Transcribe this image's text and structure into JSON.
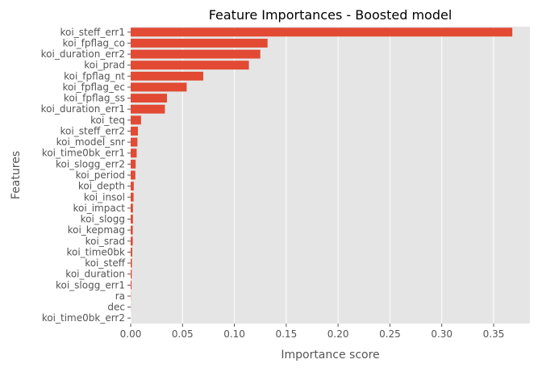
{
  "chart_data": {
    "type": "bar",
    "orientation": "horizontal",
    "title": "Feature Importances - Boosted model",
    "xlabel": "Importance score",
    "ylabel": "Features",
    "xlim": [
      0,
      0.385
    ],
    "xticks": [
      "0.00",
      "0.05",
      "0.10",
      "0.15",
      "0.20",
      "0.25",
      "0.30",
      "0.35"
    ],
    "grid": true,
    "categories": [
      "koi_steff_err1",
      "koi_fpflag_co",
      "koi_duration_err2",
      "koi_prad",
      "koi_fpflag_nt",
      "koi_fpflag_ec",
      "koi_fpflag_ss",
      "koi_duration_err1",
      "koi_teq",
      "koi_steff_err2",
      "koi_model_snr",
      "koi_time0bk_err1",
      "koi_slogg_err2",
      "koi_period",
      "koi_depth",
      "koi_insol",
      "koi_impact",
      "koi_slogg",
      "koi_kepmag",
      "koi_srad",
      "koi_time0bk",
      "koi_steff",
      "koi_duration",
      "koi_slogg_err1",
      "ra",
      "dec",
      "koi_time0bk_err2"
    ],
    "values": [
      0.368,
      0.132,
      0.125,
      0.114,
      0.07,
      0.054,
      0.035,
      0.033,
      0.01,
      0.007,
      0.0065,
      0.0058,
      0.0048,
      0.0045,
      0.003,
      0.0028,
      0.0022,
      0.0022,
      0.002,
      0.002,
      0.0015,
      0.0012,
      0.001,
      0.0008,
      0.0002,
      0.0001,
      0.0
    ],
    "colors": {
      "bar": "#e24a33",
      "plot_bg": "#e5e5e5",
      "grid": "#ffffff",
      "text": "#555555",
      "title": "#000000"
    }
  }
}
